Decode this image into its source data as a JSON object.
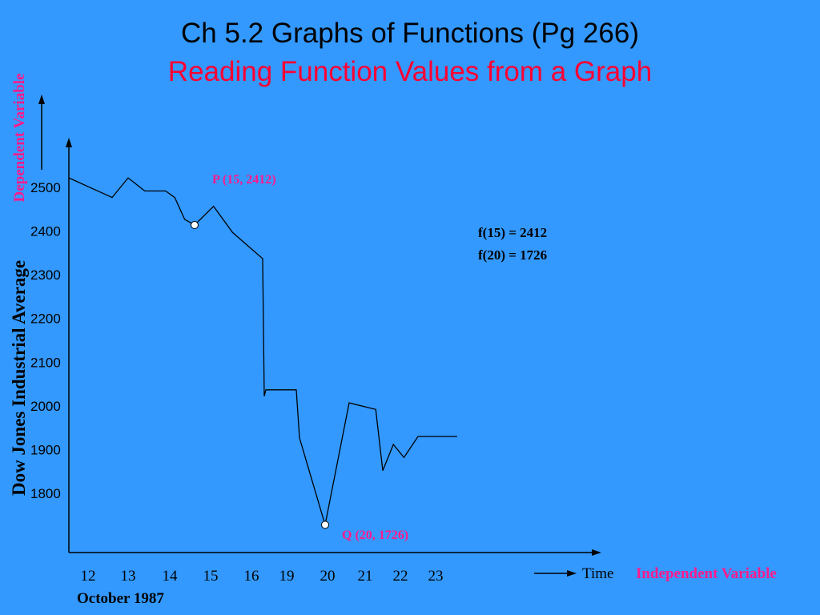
{
  "slide": {
    "title_line1": "Ch 5.2 Graphs of Functions (Pg 266)",
    "title_line2": "Reading Function Values from a Graph",
    "function_values": [
      "f(15) =  2412",
      "f(20) = 1726"
    ],
    "month_label": "October 1987",
    "time_label": "Time",
    "independent_label": "Independent Variable",
    "dependent_label": "Dependent Variable"
  },
  "colors": {
    "background": "#3399ff",
    "accent_red": "#ff0033",
    "accent_pink": "#ff1a8c"
  },
  "chart_data": {
    "type": "line",
    "ylabel": "Dow Jones Industrial Average",
    "y_ticks": [
      2500,
      2400,
      2300,
      2200,
      2100,
      2000,
      1900,
      1800
    ],
    "ylim": [
      1660,
      2600
    ],
    "x_ticks": [
      "12",
      "13",
      "14",
      "15",
      "16",
      "19",
      "20",
      "21",
      "22",
      "23"
    ],
    "series": [
      {
        "points": [
          {
            "x": 11.8,
            "y": 2520
          },
          {
            "x": 12.6,
            "y": 2475
          },
          {
            "x": 13.0,
            "y": 2520
          },
          {
            "x": 13.4,
            "y": 2490
          },
          {
            "x": 13.9,
            "y": 2490
          },
          {
            "x": 14.2,
            "y": 2475
          },
          {
            "x": 14.6,
            "y": 2425
          },
          {
            "x": 15.0,
            "y": 2412
          },
          {
            "x": 15.3,
            "y": 2455
          },
          {
            "x": 15.6,
            "y": 2395
          },
          {
            "x": 16.3,
            "y": 2335
          },
          {
            "x": 16.4,
            "y": 2020
          },
          {
            "x": 16.5,
            "y": 2035
          },
          {
            "x": 19.1,
            "y": 2035
          },
          {
            "x": 19.2,
            "y": 1925
          },
          {
            "x": 20.0,
            "y": 1726
          },
          {
            "x": 20.6,
            "y": 2005
          },
          {
            "x": 21.3,
            "y": 1990
          },
          {
            "x": 21.5,
            "y": 1850
          },
          {
            "x": 21.8,
            "y": 1910
          },
          {
            "x": 22.1,
            "y": 1880
          },
          {
            "x": 22.5,
            "y": 1928
          },
          {
            "x": 23.5,
            "y": 1928
          }
        ]
      }
    ],
    "annotations": [
      {
        "label": "P (15, 2412)",
        "x": 15,
        "y": 2412
      },
      {
        "label": "Q (20, 1726)",
        "x": 20,
        "y": 1726
      }
    ]
  }
}
